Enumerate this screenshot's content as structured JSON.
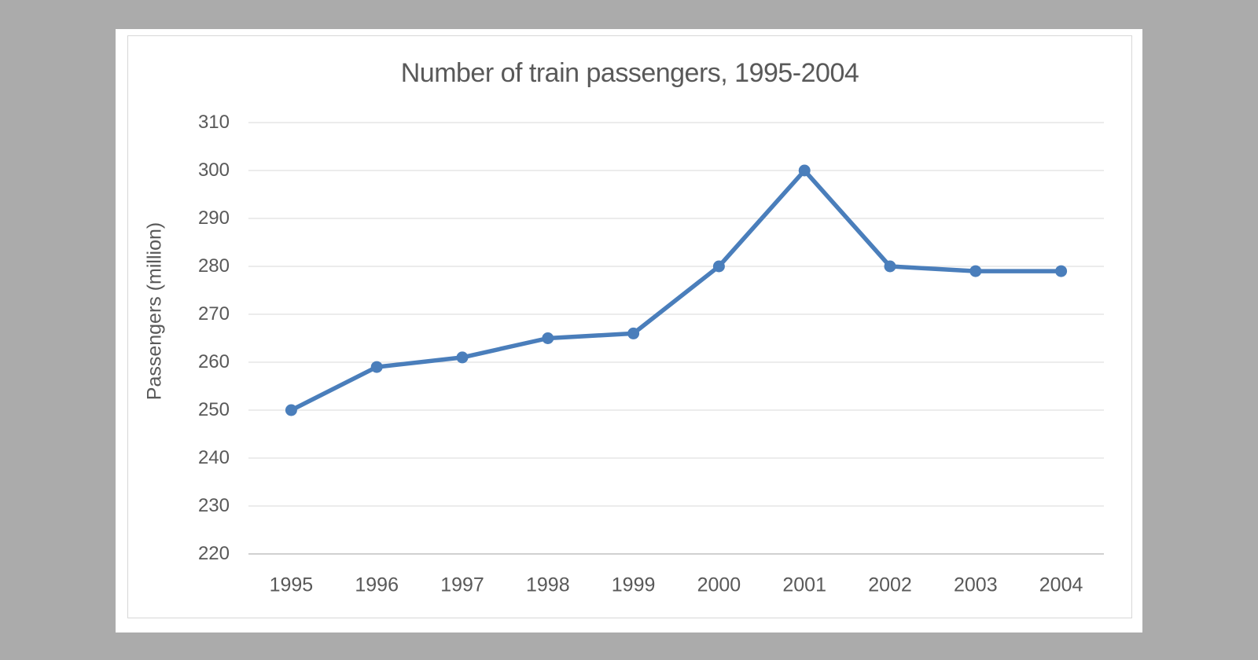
{
  "window": {
    "background_color": "#ababab",
    "card_background_color": "#ffffff",
    "frame_border_color": "#d7d7d7"
  },
  "chart_data": {
    "type": "line",
    "title": "Number of train passengers, 1995-2004",
    "xlabel": "",
    "ylabel": "Passengers (million)",
    "categories": [
      "1995",
      "1996",
      "1997",
      "1998",
      "1999",
      "2000",
      "2001",
      "2002",
      "2003",
      "2004"
    ],
    "series": [
      {
        "name": "Passengers",
        "values": [
          250,
          259,
          261,
          265,
          266,
          280,
          300,
          280,
          279,
          279
        ]
      }
    ],
    "ylim": [
      220,
      310
    ],
    "ytick_step": 10,
    "yticks": [
      220,
      230,
      240,
      250,
      260,
      270,
      280,
      290,
      300,
      310
    ],
    "grid": true,
    "legend": false,
    "marker": "circle",
    "colors": {
      "line": "#4a7ebb",
      "marker": "#4a7ebb",
      "gridline": "#d9d9d9",
      "axis_line": "#c0c0c0",
      "text": "#595959"
    }
  }
}
